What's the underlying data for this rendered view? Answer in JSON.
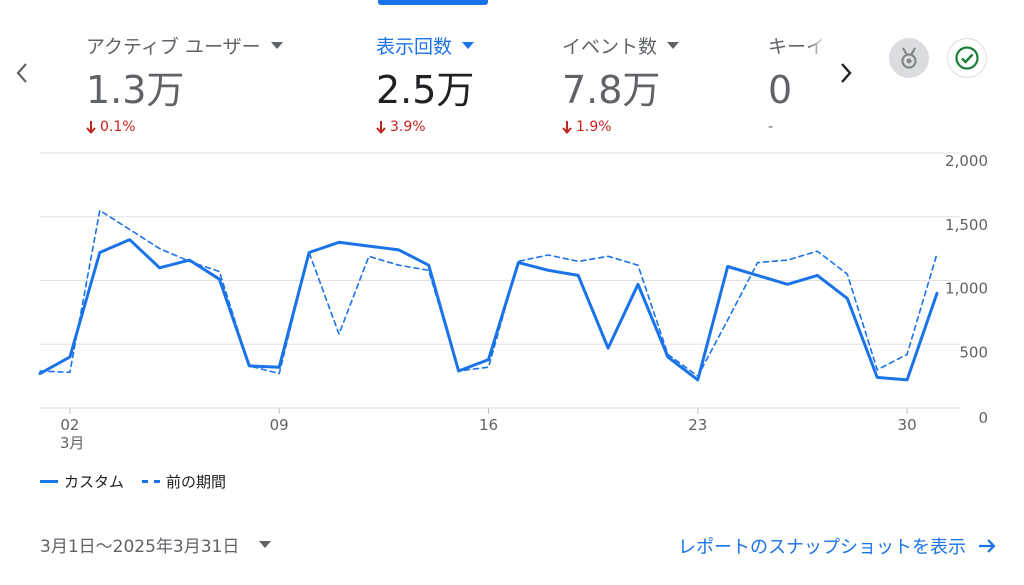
{
  "metrics": [
    {
      "label": "アクティブ ユーザー",
      "value": "1.3万",
      "change": "0.1%",
      "direction": "down",
      "active": false
    },
    {
      "label": "表示回数",
      "value": "2.5万",
      "change": "3.9%",
      "direction": "down",
      "active": true
    },
    {
      "label": "イベント数",
      "value": "7.8万",
      "change": "1.9%",
      "direction": "down",
      "active": false
    },
    {
      "label": "キーイ",
      "value": "0",
      "change": "-",
      "direction": "none",
      "active": false
    }
  ],
  "icons": {
    "prev": "chevron-left-icon",
    "next": "chevron-right-icon",
    "medal": "medal-icon",
    "check": "check-circle-icon",
    "link_arrow": "arrow-right-icon"
  },
  "colors": {
    "accent": "#1a73e8",
    "negative": "#c5221f",
    "muted": "#5f6368",
    "grid": "#e0e0e0"
  },
  "chart_data": {
    "type": "line",
    "x_label_day_indices": [
      2,
      9,
      16,
      23,
      30
    ],
    "x_tick_labels": [
      "02",
      "09",
      "16",
      "23",
      "30"
    ],
    "x_month_label": "3月",
    "x": [
      1,
      2,
      3,
      4,
      5,
      6,
      7,
      8,
      9,
      10,
      11,
      12,
      13,
      14,
      15,
      16,
      17,
      18,
      19,
      20,
      21,
      22,
      23,
      24,
      25,
      26,
      27,
      28,
      29,
      30,
      31
    ],
    "ylim": [
      0,
      2000
    ],
    "y_ticks": [
      0,
      500,
      1000,
      1500,
      2000
    ],
    "y_tick_labels": [
      "0",
      "500",
      "1,000",
      "1,500",
      "2,000"
    ],
    "grid": true,
    "legend_position": "bottom-left",
    "series": [
      {
        "name": "カスタム",
        "style": "solid",
        "values": [
          270,
          400,
          1220,
          1320,
          1100,
          1160,
          1010,
          330,
          320,
          1220,
          1300,
          1270,
          1240,
          1120,
          290,
          380,
          1140,
          1080,
          1040,
          470,
          970,
          400,
          220,
          1110,
          1040,
          970,
          1040,
          860,
          240,
          220,
          900
        ]
      },
      {
        "name": "前の期間",
        "style": "dashed",
        "values": [
          290,
          280,
          1550,
          1400,
          1250,
          1150,
          1070,
          330,
          270,
          1220,
          580,
          1190,
          1120,
          1080,
          290,
          320,
          1150,
          1200,
          1150,
          1190,
          1120,
          420,
          250,
          690,
          1140,
          1160,
          1230,
          1050,
          300,
          420,
          1210
        ]
      }
    ]
  },
  "legend": [
    {
      "label": "カスタム",
      "style": "solid"
    },
    {
      "label": "前の期間",
      "style": "dashed"
    }
  ],
  "footer": {
    "date_range": "3月1日～2025年3月31日",
    "snapshot_link": "レポートのスナップショットを表示"
  }
}
